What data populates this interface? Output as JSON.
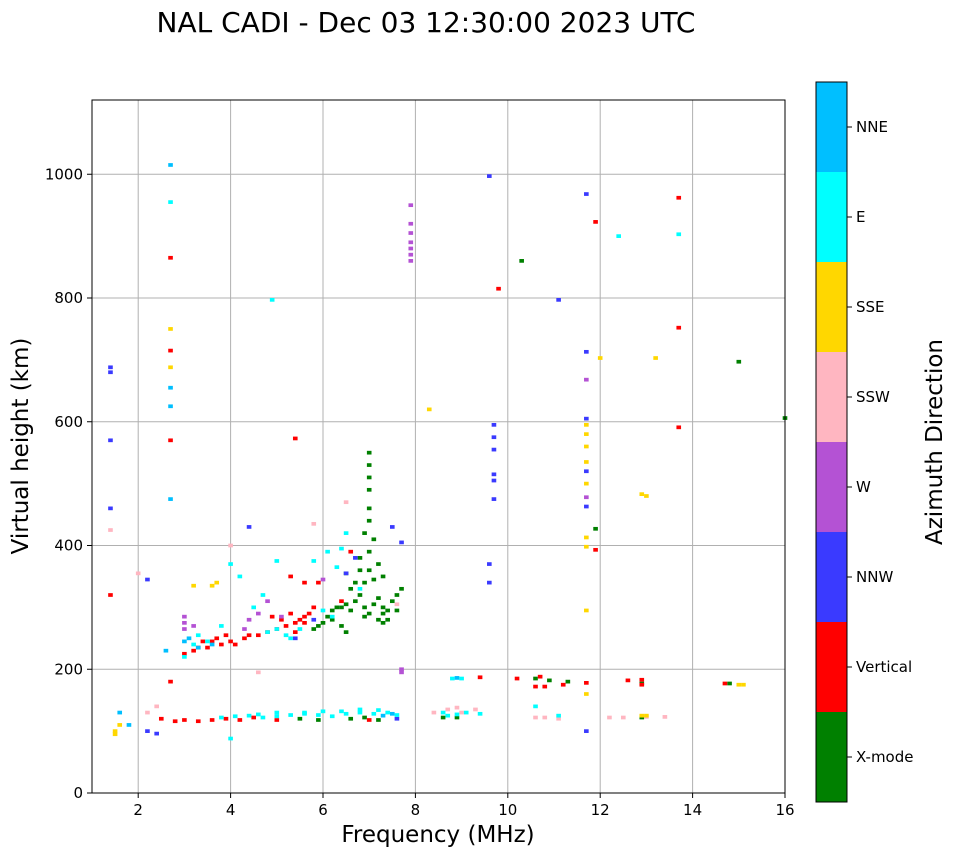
{
  "chart_data": {
    "type": "scatter",
    "title": "NAL CADI - Dec 03 12:30:00 2023 UTC",
    "xlabel": "Frequency (MHz)",
    "ylabel": "Virtual height (km)",
    "xlim": [
      1,
      16
    ],
    "ylim": [
      0,
      1120
    ],
    "xticks": [
      2,
      4,
      6,
      8,
      10,
      12,
      14,
      16
    ],
    "yticks": [
      0,
      200,
      400,
      600,
      800,
      1000
    ],
    "grid": true,
    "colorbar": {
      "label": "Azimuth Direction",
      "categories": [
        "X-mode",
        "Vertical",
        "NNW",
        "W",
        "SSW",
        "SSE",
        "E",
        "NNE"
      ],
      "colors": [
        "#008000",
        "#ff0000",
        "#3a3aff",
        "#b452d4",
        "#ffb6c1",
        "#ffd700",
        "#00ffff",
        "#00bfff"
      ]
    },
    "cell_size": {
      "freq_mhz": 0.1,
      "height_km": 6
    },
    "series": [
      {
        "name": "X-mode",
        "points": [
          [
            6.3,
            300
          ],
          [
            6.5,
            305
          ],
          [
            6.6,
            295
          ],
          [
            6.7,
            310
          ],
          [
            6.8,
            320
          ],
          [
            6.9,
            300
          ],
          [
            7.0,
            290
          ],
          [
            7.1,
            305
          ],
          [
            7.2,
            315
          ],
          [
            7.3,
            300
          ],
          [
            7.4,
            295
          ],
          [
            7.5,
            310
          ],
          [
            7.6,
            320
          ],
          [
            7.7,
            330
          ],
          [
            6.6,
            330
          ],
          [
            6.9,
            340
          ],
          [
            7.1,
            345
          ],
          [
            7.3,
            350
          ],
          [
            7.0,
            360
          ],
          [
            7.2,
            370
          ],
          [
            6.8,
            380
          ],
          [
            7.0,
            390
          ],
          [
            7.1,
            410
          ],
          [
            6.9,
            420
          ],
          [
            7.0,
            440
          ],
          [
            7.0,
            460
          ],
          [
            7.0,
            490
          ],
          [
            7.0,
            510
          ],
          [
            7.0,
            530
          ],
          [
            7.0,
            550
          ],
          [
            6.1,
            285
          ],
          [
            6.2,
            280
          ],
          [
            5.9,
            270
          ],
          [
            6.0,
            275
          ],
          [
            5.8,
            265
          ],
          [
            6.5,
            260
          ],
          [
            6.4,
            270
          ],
          [
            6.7,
            340
          ],
          [
            6.5,
            355
          ],
          [
            6.8,
            360
          ],
          [
            7.3,
            290
          ],
          [
            7.4,
            280
          ],
          [
            7.6,
            295
          ],
          [
            6.2,
            295
          ],
          [
            6.4,
            300
          ],
          [
            7.2,
            280
          ],
          [
            7.3,
            275
          ],
          [
            6.9,
            285
          ],
          [
            8.6,
            122
          ],
          [
            8.9,
            122
          ],
          [
            10.6,
            185
          ],
          [
            10.9,
            182
          ],
          [
            11.3,
            180
          ],
          [
            12.9,
            177
          ],
          [
            12.9,
            122
          ],
          [
            14.8,
            177
          ],
          [
            15.0,
            697
          ],
          [
            16.0,
            606
          ],
          [
            10.3,
            860
          ],
          [
            11.9,
            427
          ],
          [
            6.6,
            120
          ],
          [
            6.9,
            122
          ],
          [
            7.2,
            118
          ],
          [
            5.9,
            118
          ],
          [
            5.5,
            120
          ]
        ]
      },
      {
        "name": "Vertical",
        "points": [
          [
            3.0,
            225
          ],
          [
            3.2,
            230
          ],
          [
            3.5,
            235
          ],
          [
            3.8,
            240
          ],
          [
            4.0,
            245
          ],
          [
            4.3,
            250
          ],
          [
            4.6,
            255
          ],
          [
            4.8,
            260
          ],
          [
            5.0,
            265
          ],
          [
            5.2,
            270
          ],
          [
            5.4,
            275
          ],
          [
            5.5,
            280
          ],
          [
            5.6,
            285
          ],
          [
            5.7,
            290
          ],
          [
            3.4,
            245
          ],
          [
            3.7,
            250
          ],
          [
            3.9,
            255
          ],
          [
            4.1,
            240
          ],
          [
            3.3,
            235
          ],
          [
            3.6,
            245
          ],
          [
            5.1,
            280
          ],
          [
            5.3,
            290
          ],
          [
            4.9,
            285
          ],
          [
            5.8,
            300
          ],
          [
            5.4,
            260
          ],
          [
            5.6,
            275
          ],
          [
            4.4,
            255
          ],
          [
            5.3,
            350
          ],
          [
            5.6,
            340
          ],
          [
            5.9,
            340
          ],
          [
            6.6,
            390
          ],
          [
            6.4,
            310
          ],
          [
            2.7,
            180
          ],
          [
            2.7,
            570
          ],
          [
            2.7,
            715
          ],
          [
            2.7,
            865
          ],
          [
            5.4,
            573
          ],
          [
            1.4,
            320
          ],
          [
            3.0,
            118
          ],
          [
            3.3,
            116
          ],
          [
            3.6,
            118
          ],
          [
            3.9,
            120
          ],
          [
            4.2,
            118
          ],
          [
            2.5,
            120
          ],
          [
            2.8,
            116
          ],
          [
            5.0,
            118
          ],
          [
            7.0,
            118
          ],
          [
            4.5,
            122
          ],
          [
            9.4,
            187
          ],
          [
            10.2,
            185
          ],
          [
            10.6,
            172
          ],
          [
            10.8,
            172
          ],
          [
            10.7,
            188
          ],
          [
            11.2,
            175
          ],
          [
            11.7,
            178
          ],
          [
            12.6,
            182
          ],
          [
            12.9,
            175
          ],
          [
            14.7,
            177
          ],
          [
            11.9,
            393
          ],
          [
            13.7,
            591
          ],
          [
            13.7,
            752
          ],
          [
            13.7,
            962
          ],
          [
            11.9,
            923
          ],
          [
            9.8,
            815
          ],
          [
            12.9,
            183
          ]
        ]
      },
      {
        "name": "NNW",
        "points": [
          [
            1.4,
            680
          ],
          [
            1.4,
            688
          ],
          [
            1.4,
            570
          ],
          [
            1.4,
            460
          ],
          [
            2.2,
            345
          ],
          [
            4.4,
            430
          ],
          [
            5.4,
            250
          ],
          [
            5.8,
            280
          ],
          [
            6.7,
            380
          ],
          [
            7.5,
            430
          ],
          [
            7.7,
            405
          ],
          [
            6.5,
            355
          ],
          [
            9.7,
            595
          ],
          [
            9.7,
            575
          ],
          [
            9.7,
            555
          ],
          [
            9.7,
            515
          ],
          [
            9.7,
            505
          ],
          [
            9.7,
            475
          ],
          [
            9.6,
            370
          ],
          [
            9.6,
            340
          ],
          [
            9.6,
            997
          ],
          [
            11.7,
            968
          ],
          [
            11.7,
            713
          ],
          [
            11.7,
            605
          ],
          [
            11.7,
            520
          ],
          [
            11.7,
            463
          ],
          [
            11.7,
            100
          ],
          [
            11.1,
            797
          ],
          [
            7.6,
            120
          ],
          [
            2.4,
            96
          ],
          [
            2.2,
            100
          ]
        ]
      },
      {
        "name": "W",
        "points": [
          [
            3.0,
            265
          ],
          [
            3.0,
            275
          ],
          [
            3.0,
            285
          ],
          [
            3.2,
            270
          ],
          [
            4.6,
            290
          ],
          [
            5.1,
            285
          ],
          [
            4.8,
            310
          ],
          [
            4.4,
            280
          ],
          [
            6.0,
            345
          ],
          [
            7.9,
            950
          ],
          [
            7.9,
            920
          ],
          [
            7.9,
            905
          ],
          [
            7.9,
            890
          ],
          [
            7.9,
            880
          ],
          [
            7.9,
            870
          ],
          [
            7.9,
            860
          ],
          [
            7.7,
            200
          ],
          [
            7.7,
            195
          ],
          [
            11.7,
            668
          ],
          [
            11.7,
            478
          ],
          [
            4.3,
            265
          ]
        ]
      },
      {
        "name": "SSW",
        "points": [
          [
            1.4,
            425
          ],
          [
            2.0,
            355
          ],
          [
            4.0,
            400
          ],
          [
            6.5,
            470
          ],
          [
            5.8,
            435
          ],
          [
            7.6,
            305
          ],
          [
            4.6,
            195
          ],
          [
            2.2,
            130
          ],
          [
            2.4,
            140
          ],
          [
            8.4,
            130
          ],
          [
            8.7,
            135
          ],
          [
            8.9,
            138
          ],
          [
            9.0,
            130
          ],
          [
            9.3,
            135
          ],
          [
            10.6,
            122
          ],
          [
            10.8,
            122
          ],
          [
            11.1,
            120
          ],
          [
            12.5,
            122
          ],
          [
            13.0,
            123
          ],
          [
            13.4,
            123
          ],
          [
            12.2,
            122
          ]
        ]
      },
      {
        "name": "SSE",
        "points": [
          [
            1.5,
            95
          ],
          [
            1.5,
            100
          ],
          [
            1.6,
            110
          ],
          [
            2.7,
            750
          ],
          [
            2.7,
            688
          ],
          [
            3.6,
            335
          ],
          [
            3.7,
            340
          ],
          [
            3.2,
            335
          ],
          [
            8.3,
            620
          ],
          [
            11.7,
            535
          ],
          [
            11.7,
            500
          ],
          [
            11.7,
            580
          ],
          [
            11.7,
            595
          ],
          [
            11.7,
            560
          ],
          [
            11.7,
            413
          ],
          [
            11.7,
            398
          ],
          [
            11.7,
            295
          ],
          [
            11.7,
            160
          ],
          [
            12.0,
            703
          ],
          [
            13.2,
            703
          ],
          [
            12.9,
            483
          ],
          [
            13.0,
            480
          ],
          [
            15.0,
            175
          ],
          [
            15.1,
            175
          ],
          [
            12.9,
            125
          ],
          [
            13.0,
            125
          ]
        ]
      },
      {
        "name": "E",
        "points": [
          [
            3.0,
            220
          ],
          [
            3.2,
            240
          ],
          [
            3.5,
            245
          ],
          [
            4.0,
            370
          ],
          [
            4.2,
            350
          ],
          [
            4.7,
            320
          ],
          [
            5.0,
            375
          ],
          [
            5.8,
            375
          ],
          [
            6.1,
            390
          ],
          [
            6.4,
            395
          ],
          [
            6.5,
            420
          ],
          [
            6.3,
            365
          ],
          [
            6.8,
            330
          ],
          [
            4.5,
            300
          ],
          [
            3.3,
            255
          ],
          [
            4.8,
            260
          ],
          [
            5.0,
            265
          ],
          [
            5.2,
            255
          ],
          [
            5.5,
            265
          ],
          [
            6.0,
            295
          ],
          [
            6.2,
            285
          ],
          [
            5.3,
            250
          ],
          [
            3.8,
            270
          ],
          [
            4.7,
            122
          ],
          [
            5.0,
            124
          ],
          [
            5.3,
            126
          ],
          [
            5.6,
            128
          ],
          [
            5.9,
            126
          ],
          [
            6.2,
            124
          ],
          [
            6.5,
            128
          ],
          [
            6.8,
            130
          ],
          [
            7.1,
            128
          ],
          [
            7.4,
            130
          ],
          [
            7.6,
            126
          ],
          [
            4.4,
            125
          ],
          [
            4.1,
            124
          ],
          [
            3.8,
            122
          ],
          [
            6.0,
            132
          ],
          [
            6.4,
            132
          ],
          [
            6.8,
            135
          ],
          [
            7.2,
            134
          ],
          [
            5.6,
            130
          ],
          [
            5.0,
            130
          ],
          [
            4.6,
            127
          ],
          [
            8.6,
            130
          ],
          [
            8.7,
            125
          ],
          [
            8.9,
            127
          ],
          [
            9.1,
            130
          ],
          [
            9.4,
            128
          ],
          [
            8.8,
            185
          ],
          [
            9.0,
            185
          ],
          [
            10.6,
            140
          ],
          [
            11.1,
            125
          ],
          [
            12.4,
            900
          ],
          [
            13.7,
            903
          ],
          [
            4.9,
            797
          ],
          [
            2.7,
            955
          ],
          [
            4.0,
            88
          ]
        ]
      },
      {
        "name": "NNE",
        "points": [
          [
            1.6,
            130
          ],
          [
            1.8,
            110
          ],
          [
            2.6,
            230
          ],
          [
            3.1,
            250
          ],
          [
            2.7,
            475
          ],
          [
            2.7,
            625
          ],
          [
            2.7,
            655
          ],
          [
            2.7,
            1015
          ],
          [
            3.0,
            245
          ],
          [
            3.3,
            235
          ],
          [
            3.6,
            240
          ],
          [
            7.3,
            125
          ],
          [
            7.5,
            128
          ],
          [
            8.9,
            186
          ]
        ]
      }
    ]
  }
}
